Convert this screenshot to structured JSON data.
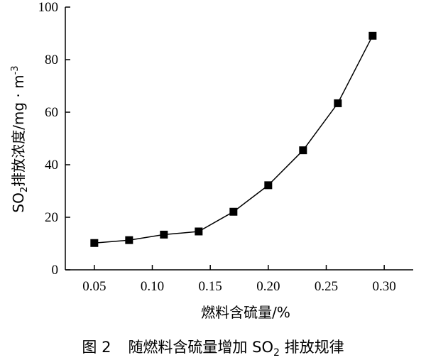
{
  "chart_data": {
    "type": "line",
    "x": [
      0.05,
      0.08,
      0.11,
      0.14,
      0.17,
      0.2,
      0.23,
      0.26,
      0.29
    ],
    "series": [
      {
        "values": [
          10.2,
          11.3,
          13.4,
          14.6,
          22.1,
          32.2,
          45.5,
          63.4,
          89.1
        ]
      }
    ],
    "xlabel": "燃料含硫量/%",
    "ylabel": {
      "prefix": "SO",
      "sub": "2",
      "rest": "排放浓度/mg · m",
      "sup": "-3"
    },
    "xlim": [
      0.025,
      0.325
    ],
    "ylim": [
      0,
      100
    ],
    "xticks": [
      0.05,
      0.1,
      0.15,
      0.2,
      0.25,
      0.3
    ],
    "xtick_labels": [
      "0.05",
      "0.10",
      "0.15",
      "0.20",
      "0.25",
      "0.30"
    ],
    "yticks": [
      0,
      20,
      40,
      60,
      80,
      100
    ],
    "ytick_labels": [
      "0",
      "20",
      "40",
      "60",
      "80",
      "100"
    ],
    "marker": "square",
    "grid": false,
    "line_color": "#000000",
    "caption": {
      "figure_no": "图 2",
      "text_before": "随燃料含硫量增加 SO",
      "sub": "2",
      "text_after": " 排放规律"
    }
  }
}
